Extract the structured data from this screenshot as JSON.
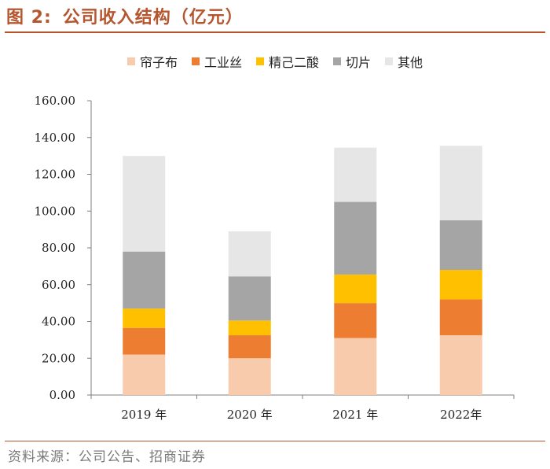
{
  "figure": {
    "label": "图 2:",
    "title": "公司收入结构（亿元）",
    "source": "资料来源：公司公告、招商证券"
  },
  "chart_data": {
    "type": "bar",
    "stacked": true,
    "categories": [
      "2019 年",
      "2020 年",
      "2021 年",
      "2022年"
    ],
    "series": [
      {
        "name": "帘子布",
        "color": "#f8cbad",
        "values": [
          22,
          20,
          31,
          32.5
        ]
      },
      {
        "name": "工业丝",
        "color": "#ed7d31",
        "values": [
          14.5,
          12.5,
          19,
          19.5
        ]
      },
      {
        "name": "精己二酸",
        "color": "#ffc000",
        "values": [
          10.5,
          8,
          15.5,
          16
        ]
      },
      {
        "name": "切片",
        "color": "#a5a5a5",
        "values": [
          31,
          24,
          39.5,
          27
        ]
      },
      {
        "name": "其他",
        "color": "#e7e6e6",
        "values": [
          52,
          24.5,
          29.5,
          40.5
        ]
      }
    ],
    "ylim": [
      0,
      160
    ],
    "yticks": [
      "0.00",
      "20.00",
      "40.00",
      "60.00",
      "80.00",
      "100.00",
      "120.00",
      "140.00",
      "160.00"
    ],
    "ytick_values": [
      0,
      20,
      40,
      60,
      80,
      100,
      120,
      140,
      160
    ],
    "xlabel": "",
    "ylabel": "",
    "legend_position": "top-center",
    "grid": false
  }
}
